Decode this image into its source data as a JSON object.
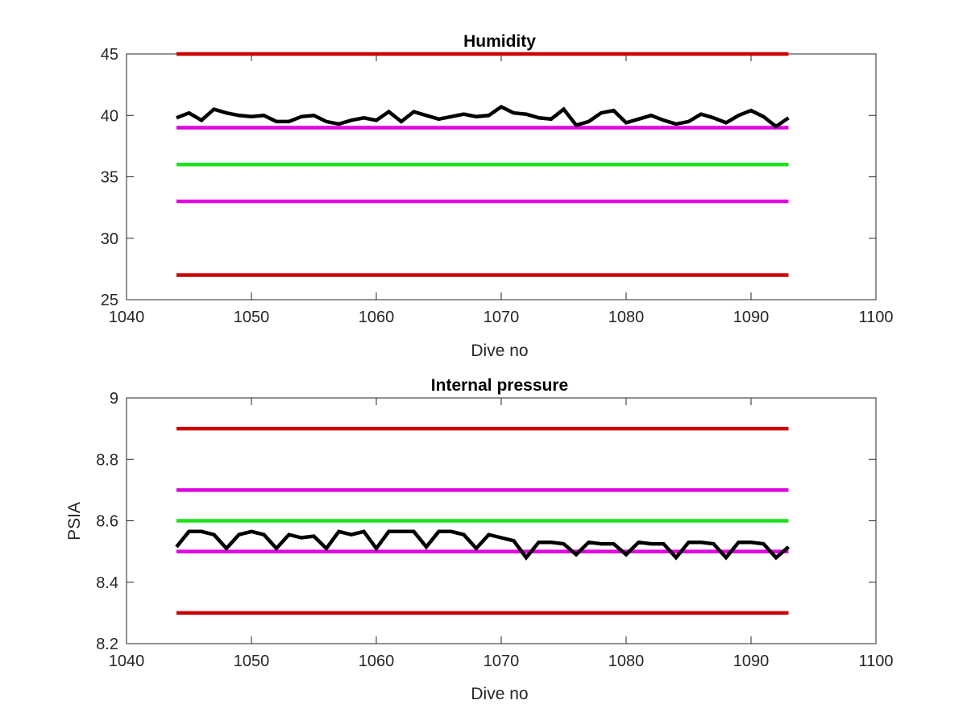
{
  "chart_data": [
    {
      "type": "line",
      "title": "Humidity",
      "xlabel": "Dive no",
      "ylabel": "",
      "xlim": [
        1040,
        1100
      ],
      "ylim": [
        25,
        45
      ],
      "xticks": [
        "1040",
        "1050",
        "1060",
        "1070",
        "1080",
        "1090",
        "1100"
      ],
      "yticks": [
        "25",
        "30",
        "35",
        "40",
        "45"
      ],
      "grid": false,
      "reference_lines": [
        {
          "y": 45,
          "x": [
            1044,
            1093
          ],
          "color": "#cc0000"
        },
        {
          "y": 39,
          "x": [
            1044,
            1093
          ],
          "color": "#e000e0"
        },
        {
          "y": 36,
          "x": [
            1044,
            1093
          ],
          "color": "#1ee01e"
        },
        {
          "y": 33,
          "x": [
            1044,
            1093
          ],
          "color": "#e000e0"
        },
        {
          "y": 27,
          "x": [
            1044,
            1093
          ],
          "color": "#cc0000"
        }
      ],
      "series": [
        {
          "color": "#000000",
          "x": [
            1044,
            1045,
            1046,
            1047,
            1048,
            1049,
            1050,
            1051,
            1052,
            1053,
            1054,
            1055,
            1056,
            1057,
            1058,
            1059,
            1060,
            1061,
            1062,
            1063,
            1064,
            1065,
            1066,
            1067,
            1068,
            1069,
            1070,
            1071,
            1072,
            1073,
            1074,
            1075,
            1076,
            1077,
            1078,
            1079,
            1080,
            1081,
            1082,
            1083,
            1084,
            1085,
            1086,
            1087,
            1088,
            1089,
            1090,
            1091,
            1092,
            1093
          ],
          "y": [
            39.8,
            40.2,
            39.6,
            40.5,
            40.2,
            40.0,
            39.9,
            40.0,
            39.5,
            39.5,
            39.9,
            40.0,
            39.5,
            39.3,
            39.6,
            39.8,
            39.6,
            40.3,
            39.5,
            40.3,
            40.0,
            39.7,
            39.9,
            40.1,
            39.9,
            40.0,
            40.7,
            40.2,
            40.1,
            39.8,
            39.7,
            40.5,
            39.2,
            39.5,
            40.2,
            40.4,
            39.4,
            39.7,
            40.0,
            39.6,
            39.3,
            39.5,
            40.1,
            39.8,
            39.4,
            40.0,
            40.4,
            39.9,
            39.1,
            39.8
          ]
        }
      ]
    },
    {
      "type": "line",
      "title": "Internal pressure",
      "xlabel": "Dive no",
      "ylabel": "PSIA",
      "xlim": [
        1040,
        1100
      ],
      "ylim": [
        8.2,
        9
      ],
      "xticks": [
        "1040",
        "1050",
        "1060",
        "1070",
        "1080",
        "1090",
        "1100"
      ],
      "yticks": [
        "8.2",
        "8.4",
        "8.6",
        "8.8",
        "9"
      ],
      "grid": false,
      "reference_lines": [
        {
          "y": 8.9,
          "x": [
            1044,
            1093
          ],
          "color": "#cc0000"
        },
        {
          "y": 8.7,
          "x": [
            1044,
            1093
          ],
          "color": "#e000e0"
        },
        {
          "y": 8.6,
          "x": [
            1044,
            1093
          ],
          "color": "#1ee01e"
        },
        {
          "y": 8.5,
          "x": [
            1044,
            1093
          ],
          "color": "#e000e0"
        },
        {
          "y": 8.3,
          "x": [
            1044,
            1093
          ],
          "color": "#cc0000"
        }
      ],
      "series": [
        {
          "color": "#000000",
          "x": [
            1044,
            1045,
            1046,
            1047,
            1048,
            1049,
            1050,
            1051,
            1052,
            1053,
            1054,
            1055,
            1056,
            1057,
            1058,
            1059,
            1060,
            1061,
            1062,
            1063,
            1064,
            1065,
            1066,
            1067,
            1068,
            1069,
            1070,
            1071,
            1072,
            1073,
            1074,
            1075,
            1076,
            1077,
            1078,
            1079,
            1080,
            1081,
            1082,
            1083,
            1084,
            1085,
            1086,
            1087,
            1088,
            1089,
            1090,
            1091,
            1092,
            1093
          ],
          "y": [
            8.515,
            8.565,
            8.565,
            8.555,
            8.51,
            8.555,
            8.565,
            8.555,
            8.51,
            8.555,
            8.545,
            8.55,
            8.51,
            8.565,
            8.555,
            8.565,
            8.51,
            8.565,
            8.565,
            8.565,
            8.515,
            8.565,
            8.565,
            8.555,
            8.51,
            8.555,
            8.545,
            8.535,
            8.48,
            8.53,
            8.53,
            8.525,
            8.49,
            8.53,
            8.525,
            8.525,
            8.49,
            8.53,
            8.525,
            8.525,
            8.48,
            8.53,
            8.53,
            8.525,
            8.48,
            8.53,
            8.53,
            8.525,
            8.48,
            8.515
          ]
        }
      ]
    }
  ]
}
